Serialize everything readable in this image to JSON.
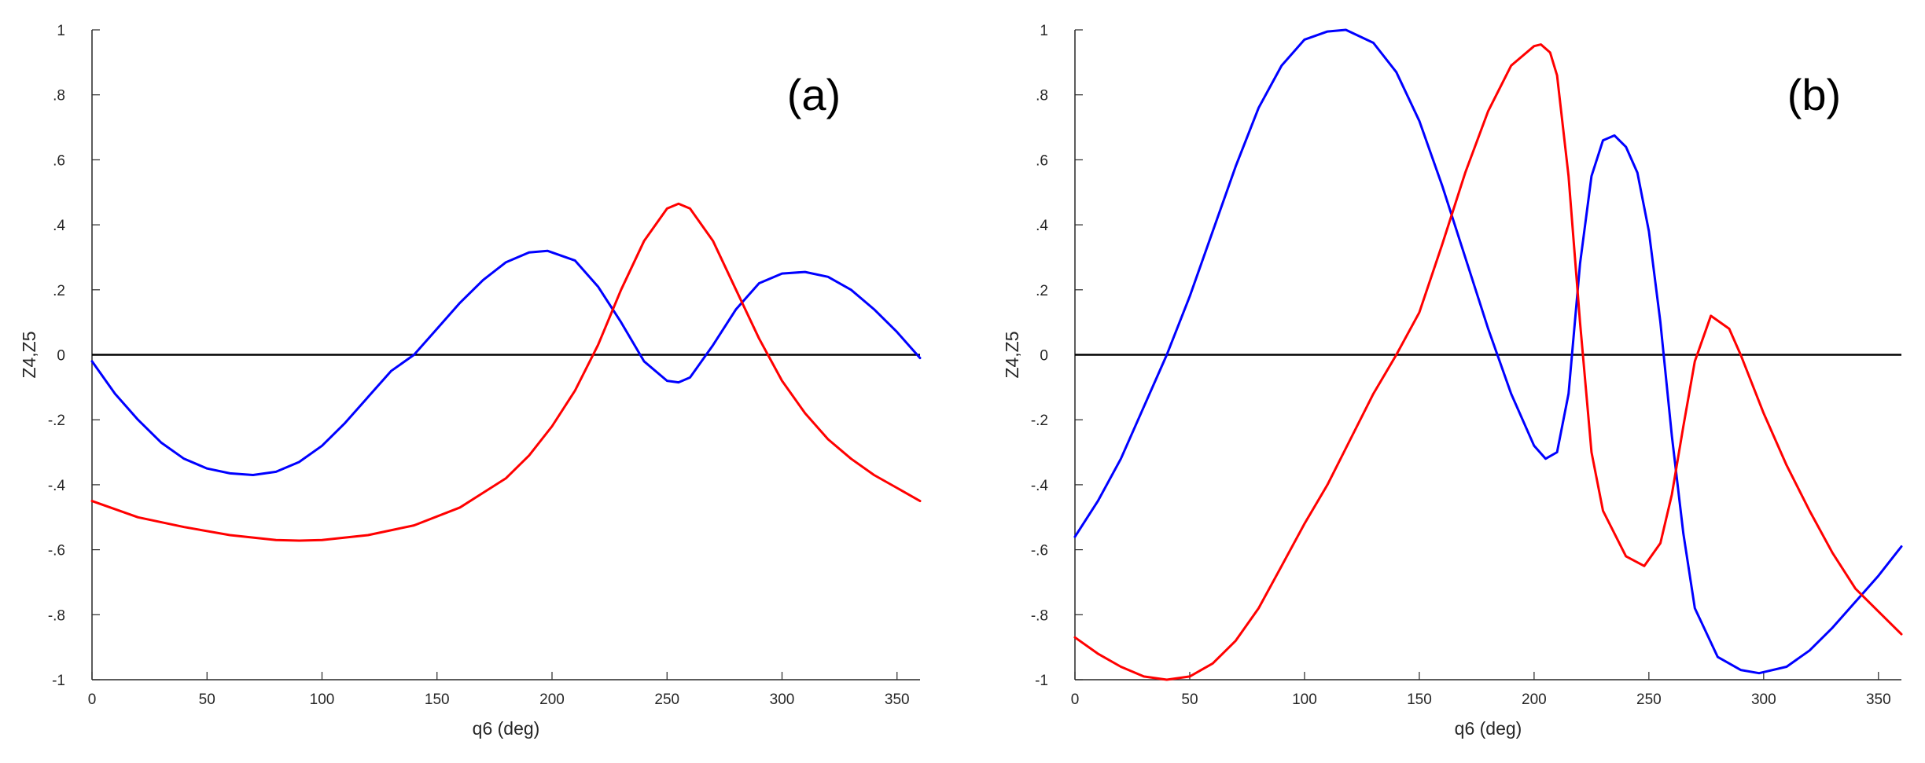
{
  "chart_data": [
    {
      "type": "line",
      "panel_label": "(a)",
      "xlabel": "q6 (deg)",
      "ylabel": "Z4,Z5",
      "xlim": [
        0,
        360
      ],
      "ylim": [
        -1,
        1
      ],
      "xticks": [
        0,
        50,
        100,
        150,
        200,
        250,
        300,
        350
      ],
      "yticks": [
        -1,
        -0.8,
        -0.6,
        -0.4,
        -0.2,
        0,
        0.2,
        0.4,
        0.6,
        0.8,
        1
      ],
      "grid": false,
      "legend": false,
      "reference_line": {
        "y": 0,
        "color": "#000000"
      },
      "series": [
        {
          "color": "#0000ff",
          "x": [
            0,
            10,
            20,
            30,
            40,
            50,
            60,
            70,
            80,
            90,
            100,
            110,
            120,
            130,
            140,
            150,
            160,
            170,
            180,
            190,
            198,
            210,
            220,
            230,
            240,
            250,
            255,
            260,
            270,
            280,
            290,
            300,
            310,
            320,
            330,
            340,
            350,
            360
          ],
          "y": [
            -0.02,
            -0.12,
            -0.2,
            -0.27,
            -0.32,
            -0.35,
            -0.365,
            -0.37,
            -0.36,
            -0.33,
            -0.28,
            -0.21,
            -0.13,
            -0.05,
            0.0,
            0.08,
            0.16,
            0.23,
            0.285,
            0.315,
            0.32,
            0.29,
            0.21,
            0.1,
            -0.02,
            -0.08,
            -0.085,
            -0.07,
            0.03,
            0.14,
            0.22,
            0.25,
            0.255,
            0.24,
            0.2,
            0.14,
            0.07,
            -0.01
          ]
        },
        {
          "color": "#ff0000",
          "x": [
            0,
            20,
            40,
            60,
            80,
            90,
            100,
            120,
            140,
            160,
            180,
            190,
            200,
            210,
            220,
            230,
            240,
            250,
            255,
            260,
            270,
            280,
            290,
            300,
            310,
            320,
            330,
            340,
            350,
            360
          ],
          "y": [
            -0.45,
            -0.5,
            -0.53,
            -0.555,
            -0.57,
            -0.572,
            -0.57,
            -0.555,
            -0.525,
            -0.47,
            -0.38,
            -0.31,
            -0.22,
            -0.11,
            0.03,
            0.2,
            0.35,
            0.45,
            0.465,
            0.45,
            0.35,
            0.2,
            0.05,
            -0.08,
            -0.18,
            -0.26,
            -0.32,
            -0.37,
            -0.41,
            -0.45
          ]
        }
      ]
    },
    {
      "type": "line",
      "panel_label": "(b)",
      "xlabel": "q6 (deg)",
      "ylabel": "Z4,Z5",
      "xlim": [
        0,
        360
      ],
      "ylim": [
        -1,
        1
      ],
      "xticks": [
        0,
        50,
        100,
        150,
        200,
        250,
        300,
        350
      ],
      "yticks": [
        -1,
        -0.8,
        -0.6,
        -0.4,
        -0.2,
        0,
        0.2,
        0.4,
        0.6,
        0.8,
        1
      ],
      "grid": false,
      "legend": false,
      "reference_line": {
        "y": 0,
        "color": "#000000"
      },
      "series": [
        {
          "color": "#0000ff",
          "x": [
            0,
            10,
            20,
            30,
            40,
            50,
            60,
            70,
            80,
            90,
            100,
            110,
            118,
            130,
            140,
            150,
            160,
            170,
            180,
            190,
            200,
            205,
            210,
            215,
            220,
            225,
            230,
            235,
            240,
            245,
            250,
            255,
            260,
            265,
            270,
            280,
            290,
            298,
            310,
            320,
            330,
            340,
            350,
            360
          ],
          "y": [
            -0.56,
            -0.45,
            -0.32,
            -0.16,
            0.0,
            0.18,
            0.38,
            0.58,
            0.76,
            0.89,
            0.97,
            0.995,
            1.0,
            0.96,
            0.87,
            0.72,
            0.52,
            0.3,
            0.08,
            -0.12,
            -0.28,
            -0.32,
            -0.3,
            -0.12,
            0.28,
            0.55,
            0.66,
            0.675,
            0.64,
            0.56,
            0.38,
            0.1,
            -0.25,
            -0.55,
            -0.78,
            -0.93,
            -0.97,
            -0.98,
            -0.96,
            -0.91,
            -0.84,
            -0.76,
            -0.68,
            -0.59
          ]
        },
        {
          "color": "#ff0000",
          "x": [
            0,
            10,
            20,
            30,
            40,
            50,
            60,
            70,
            80,
            90,
            100,
            110,
            120,
            130,
            140,
            150,
            160,
            170,
            180,
            190,
            200,
            203,
            207,
            210,
            215,
            220,
            225,
            230,
            240,
            248,
            255,
            260,
            265,
            270,
            277,
            285,
            290,
            300,
            310,
            320,
            330,
            340,
            350,
            360
          ],
          "y": [
            -0.87,
            -0.92,
            -0.96,
            -0.99,
            -1.0,
            -0.99,
            -0.95,
            -0.88,
            -0.78,
            -0.65,
            -0.52,
            -0.4,
            -0.26,
            -0.12,
            0.0,
            0.13,
            0.34,
            0.56,
            0.75,
            0.89,
            0.95,
            0.955,
            0.93,
            0.86,
            0.55,
            0.1,
            -0.3,
            -0.48,
            -0.62,
            -0.65,
            -0.58,
            -0.43,
            -0.22,
            -0.02,
            0.12,
            0.08,
            0.0,
            -0.18,
            -0.34,
            -0.48,
            -0.61,
            -0.72,
            -0.79,
            -0.86
          ]
        }
      ]
    }
  ]
}
